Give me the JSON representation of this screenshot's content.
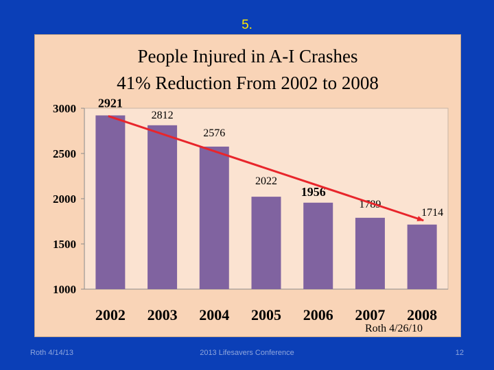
{
  "slide_number": "5.",
  "footer": {
    "left": "Roth 4/14/13",
    "center": "2013 Lifesavers Conference",
    "page": "12"
  },
  "colors": {
    "background": "#0b3fb7",
    "panel": "#f9d4b7",
    "plot": "#fbe3d1",
    "bar": "#8063a0",
    "arrow": "#e8252b",
    "slide_number": "#ffe800"
  },
  "chart_data": {
    "type": "bar",
    "title": "People Injured  in A-I Crashes",
    "subtitle": "41% Reduction From 2002 to 2008",
    "categories": [
      "2002",
      "2003",
      "2004",
      "2005",
      "2006",
      "2007",
      "2008"
    ],
    "values": [
      2921,
      2812,
      2576,
      2022,
      1956,
      1789,
      1714
    ],
    "data_labels": [
      "2921",
      "2812",
      "2576",
      "2022",
      "1956",
      "1789",
      "1714"
    ],
    "y_ticks": [
      1000,
      1500,
      2000,
      2500,
      3000
    ],
    "ylim": [
      1000,
      3000
    ],
    "xlabel": "",
    "ylabel": "",
    "grid": false,
    "annotation": "Roth 4/26/10",
    "trend_arrow": {
      "from_category": "2002",
      "to_category": "2008"
    }
  }
}
